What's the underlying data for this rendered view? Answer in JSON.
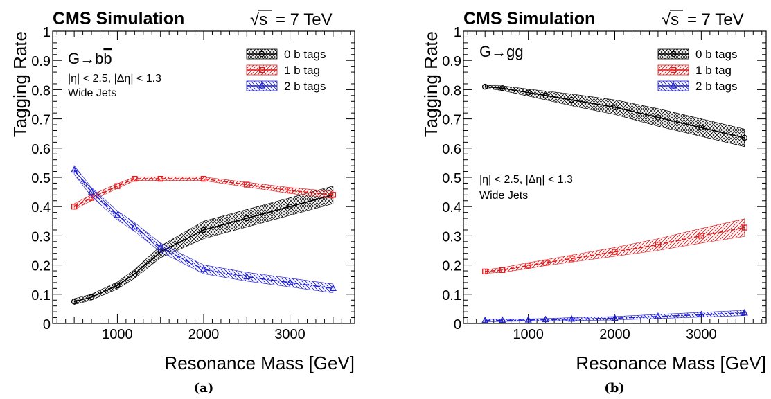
{
  "chart_data": [
    {
      "type": "line",
      "panel_label": "(a)",
      "header_left": "CMS Simulation",
      "header_right": "= 7 TeV",
      "header_sqrt_symbol": "√s",
      "process_label": "G→bb̄",
      "cut_label": "|η| < 2.5, |Δη| < 1.3",
      "jets_label": "Wide Jets",
      "xlabel": "Resonance Mass [GeV]",
      "ylabel": "Tagging Rate",
      "xlim": [
        250,
        3750
      ],
      "ylim": [
        0,
        1
      ],
      "xticks": [
        1000,
        2000,
        3000
      ],
      "yticks": [
        0,
        0.1,
        0.2,
        0.3,
        0.4,
        0.5,
        0.6,
        0.7,
        0.8,
        0.9,
        1
      ],
      "ytick_labels": [
        "0",
        "0.1",
        "0.2",
        "0.3",
        "0.4",
        "0.5",
        "0.6",
        "0.7",
        "0.8",
        "0.9",
        "1"
      ],
      "legend_position": "top-right",
      "series": [
        {
          "name": "0 b tags",
          "color": "#000000",
          "marker": "circle",
          "x": [
            500,
            700,
            1000,
            1200,
            1500,
            2000,
            2500,
            3000,
            3500
          ],
          "y": [
            0.075,
            0.09,
            0.13,
            0.17,
            0.245,
            0.32,
            0.36,
            0.4,
            0.44
          ],
          "band": [
            0.01,
            0.01,
            0.012,
            0.015,
            0.02,
            0.03,
            0.03,
            0.03,
            0.03
          ]
        },
        {
          "name": "1 b tag",
          "color": "#e0191b",
          "marker": "square",
          "x": [
            500,
            700,
            1000,
            1200,
            1500,
            2000,
            2500,
            3000,
            3500
          ],
          "y": [
            0.4,
            0.43,
            0.47,
            0.495,
            0.495,
            0.495,
            0.475,
            0.455,
            0.44
          ],
          "band": [
            0.01,
            0.01,
            0.008,
            0.006,
            0.006,
            0.006,
            0.008,
            0.01,
            0.012
          ]
        },
        {
          "name": "2 b tags",
          "color": "#1f1fd4",
          "marker": "triangle",
          "x": [
            500,
            700,
            1000,
            1200,
            1500,
            2000,
            2500,
            3000,
            3500
          ],
          "y": [
            0.525,
            0.45,
            0.37,
            0.33,
            0.26,
            0.185,
            0.16,
            0.14,
            0.12
          ],
          "band": [
            0.015,
            0.015,
            0.015,
            0.015,
            0.015,
            0.015,
            0.015,
            0.015,
            0.015
          ]
        }
      ]
    },
    {
      "type": "line",
      "panel_label": "(b)",
      "header_left": "CMS Simulation",
      "header_right": "= 7 TeV",
      "header_sqrt_symbol": "√s",
      "process_label": "G→gg",
      "cut_label": "|η| < 2.5, |Δη| < 1.3",
      "jets_label": "Wide Jets",
      "xlabel": "Resonance Mass [GeV]",
      "ylabel": "Tagging Rate",
      "xlim": [
        250,
        3750
      ],
      "ylim": [
        0,
        1
      ],
      "xticks": [
        1000,
        2000,
        3000
      ],
      "yticks": [
        0,
        0.1,
        0.2,
        0.3,
        0.4,
        0.5,
        0.6,
        0.7,
        0.8,
        0.9,
        1
      ],
      "ytick_labels": [
        "0",
        "0.1",
        "0.2",
        "0.3",
        "0.4",
        "0.5",
        "0.6",
        "0.7",
        "0.8",
        "0.9",
        "1"
      ],
      "legend_position": "top-right",
      "series": [
        {
          "name": "0 b tags",
          "color": "#000000",
          "marker": "circle",
          "x": [
            500,
            700,
            1000,
            1200,
            1500,
            2000,
            2500,
            3000,
            3500
          ],
          "y": [
            0.81,
            0.805,
            0.79,
            0.78,
            0.765,
            0.74,
            0.705,
            0.67,
            0.635
          ],
          "band": [
            0.005,
            0.008,
            0.012,
            0.015,
            0.02,
            0.025,
            0.03,
            0.03,
            0.03
          ]
        },
        {
          "name": "1 b tag",
          "color": "#e0191b",
          "marker": "square",
          "x": [
            500,
            700,
            1000,
            1200,
            1500,
            2000,
            2500,
            3000,
            3500
          ],
          "y": [
            0.178,
            0.183,
            0.198,
            0.208,
            0.222,
            0.245,
            0.27,
            0.3,
            0.328
          ],
          "band": [
            0.006,
            0.008,
            0.01,
            0.01,
            0.012,
            0.015,
            0.02,
            0.025,
            0.03
          ]
        },
        {
          "name": "2 b tags",
          "color": "#1f1fd4",
          "marker": "triangle",
          "x": [
            500,
            700,
            1000,
            1200,
            1500,
            2000,
            2500,
            3000,
            3500
          ],
          "y": [
            0.01,
            0.011,
            0.012,
            0.013,
            0.015,
            0.018,
            0.024,
            0.03,
            0.036
          ],
          "band": [
            0.004,
            0.004,
            0.004,
            0.004,
            0.005,
            0.006,
            0.007,
            0.008,
            0.009
          ]
        }
      ]
    }
  ]
}
